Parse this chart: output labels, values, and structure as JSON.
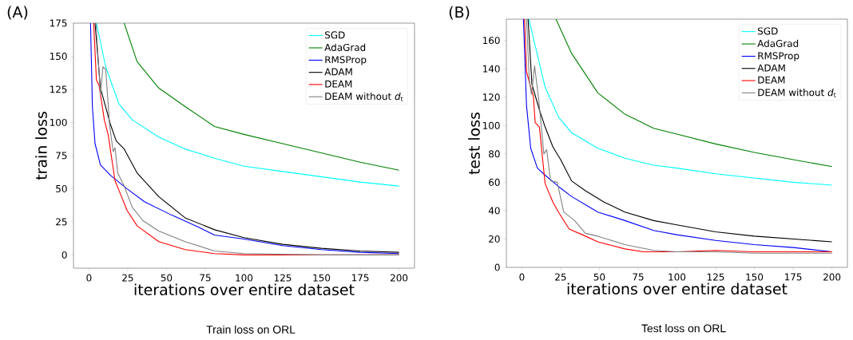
{
  "chart_data": [
    {
      "type": "line",
      "title": "(A)",
      "xlabel": "iterations over entire dataset",
      "ylabel": "train loss",
      "annotations": [
        "Train loss on ORL"
      ],
      "xlim": [
        -10,
        210
      ],
      "ylim": [
        -10,
        175
      ],
      "xticks": [
        0,
        25,
        50,
        75,
        100,
        125,
        150,
        175,
        200
      ],
      "yticks": [
        0,
        25,
        50,
        75,
        100,
        125,
        150,
        175
      ],
      "legend": "top right",
      "series": [
        {
          "name": "SGD",
          "color": "#00ffff",
          "x": [
            4.8,
            10.8,
            19.3,
            27.9,
            45,
            62,
            81,
            100,
            125,
            150,
            175,
            200
          ],
          "values": [
            175,
            142,
            114,
            102,
            89,
            80,
            73,
            67,
            63,
            59,
            55,
            52
          ]
        },
        {
          "name": "AdaGrad",
          "color": "#008000",
          "x": [
            22.7,
            31,
            45,
            62,
            81,
            100,
            125,
            150,
            175,
            200
          ],
          "values": [
            175,
            146,
            126,
            112,
            97,
            91,
            84,
            77,
            70,
            64
          ]
        },
        {
          "name": "RMSProp",
          "color": "#0000ff",
          "x": [
            1,
            2.2,
            3.9,
            7.4,
            14,
            24.4,
            36,
            53.5,
            70.6,
            81,
            100,
            125,
            150,
            175,
            200
          ],
          "values": [
            175,
            112,
            84,
            68,
            60,
            50,
            40,
            30,
            21,
            15,
            12,
            7,
            4,
            2,
            1
          ]
        },
        {
          "name": "ADAM",
          "color": "#000000",
          "x": [
            3.9,
            7.4,
            14,
            17.6,
            22.7,
            31,
            45,
            62,
            81,
            100,
            125,
            150,
            175,
            200
          ],
          "values": [
            175,
            126,
            98,
            86,
            80,
            62,
            44,
            28,
            19,
            13,
            8,
            5,
            3,
            2
          ]
        },
        {
          "name": "DEAM",
          "color": "#ff0000",
          "x": [
            3,
            4.8,
            6.5,
            9.9,
            12.5,
            16.8,
            21,
            24.4,
            31,
            45,
            62,
            81,
            100,
            150,
            200
          ],
          "values": [
            175,
            132,
            128,
            102,
            90,
            56,
            44,
            34,
            22,
            10,
            4,
            1,
            0,
            0,
            0
          ]
        },
        {
          "name": "DEAM without *d*$_{t}$",
          "color": "#808080",
          "x": [
            4.5,
            7.4,
            9,
            10.8,
            13.3,
            15.6,
            16.8,
            18.5,
            22.7,
            27.9,
            34.7,
            45,
            62,
            81,
            100,
            150,
            200
          ],
          "values": [
            175,
            121,
            142,
            140,
            98,
            78,
            81,
            62,
            52,
            36,
            26,
            18,
            10,
            3,
            1,
            0,
            0
          ]
        }
      ]
    },
    {
      "type": "line",
      "title": "(B)",
      "xlabel": "iterations over entire dataset",
      "ylabel": "test loss",
      "annotations": [
        "Test loss on ORL"
      ],
      "xlim": [
        -10,
        210
      ],
      "ylim": [
        0,
        175
      ],
      "xticks": [
        0,
        25,
        50,
        75,
        100,
        125,
        150,
        175,
        200
      ],
      "yticks": [
        0,
        20,
        40,
        60,
        80,
        100,
        120,
        140,
        160
      ],
      "legend": "top right",
      "series": [
        {
          "name": "SGD",
          "color": "#00ffff",
          "x": [
            4.5,
            15,
            23.6,
            32,
            49,
            66.5,
            85,
            100,
            125,
            150,
            175,
            200
          ],
          "values": [
            175,
            127,
            106,
            95,
            84,
            77,
            72,
            70,
            66,
            63,
            60,
            58
          ]
        },
        {
          "name": "AdaGrad",
          "color": "#008000",
          "x": [
            22,
            32,
            49,
            66.5,
            85,
            100,
            125,
            150,
            175,
            200
          ],
          "values": [
            175,
            151,
            123,
            108,
            98,
            94,
            87,
            81,
            76,
            71
          ]
        },
        {
          "name": "RMSProp",
          "color": "#0000ff",
          "x": [
            1,
            3,
            5.7,
            10,
            15,
            23.6,
            32,
            49,
            66.5,
            85,
            100,
            125,
            150,
            175,
            200
          ],
          "values": [
            175,
            114,
            84,
            70,
            65,
            57,
            50,
            39,
            33,
            26,
            23,
            19,
            16,
            14,
            11
          ]
        },
        {
          "name": "ADAM",
          "color": "#000000",
          "x": [
            4,
            6.5,
            11.6,
            15,
            20,
            25,
            32,
            41,
            53,
            66.5,
            85,
            100,
            125,
            150,
            175,
            200
          ],
          "values": [
            175,
            129,
            110,
            99,
            85,
            76,
            61,
            54,
            46,
            39,
            33,
            30,
            25,
            22,
            20,
            18
          ]
        },
        {
          "name": "DEAM",
          "color": "#ff0000",
          "x": [
            1.7,
            3,
            5.7,
            7.4,
            8.6,
            11.3,
            15,
            20,
            23.6,
            30.5,
            39,
            49,
            66.5,
            78.5,
            100,
            125,
            150,
            200
          ],
          "values": [
            175,
            138,
            127,
            121,
            102,
            99,
            59,
            46,
            39,
            27,
            23,
            18,
            13,
            11,
            11,
            12,
            11,
            11
          ]
        },
        {
          "name": "DEAM without *d*$_{t}$",
          "color": "#808080",
          "x": [
            3,
            4.8,
            6.2,
            8.2,
            10.8,
            14.2,
            16,
            18.5,
            22.8,
            27,
            34,
            41,
            49,
            66.5,
            85,
            100,
            125,
            150,
            200
          ],
          "values": [
            175,
            132,
            122,
            142,
            119,
            80,
            83,
            61,
            60,
            39,
            33,
            24,
            22,
            16,
            12,
            11,
            11,
            10,
            10
          ]
        }
      ]
    }
  ]
}
